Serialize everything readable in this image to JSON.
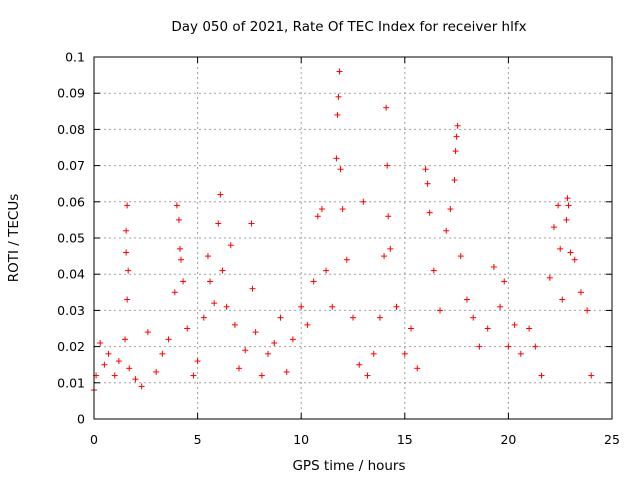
{
  "chart_data": {
    "type": "scatter",
    "title": "Day 050 of 2021, Rate Of TEC Index for receiver hlfx",
    "xlabel": "GPS time / hours",
    "ylabel": "ROTI / TECUs",
    "xlim": [
      0,
      25
    ],
    "ylim": [
      0,
      0.1
    ],
    "xticks": [
      "0",
      "5",
      "10",
      "15",
      "20",
      "25"
    ],
    "yticks": [
      "0",
      "0.01",
      "0.02",
      "0.03",
      "0.04",
      "0.05",
      "0.06",
      "0.07",
      "0.08",
      "0.09",
      "0.1"
    ],
    "grid": true,
    "marker": "+",
    "color": "#ff0000",
    "series": [
      {
        "name": "ROTI",
        "x": [
          0.0,
          0.1,
          0.3,
          0.5,
          0.7,
          1.0,
          1.2,
          1.5,
          1.55,
          1.55,
          1.6,
          1.6,
          1.65,
          1.7,
          2.0,
          2.3,
          2.6,
          3.0,
          3.3,
          3.6,
          3.9,
          4.0,
          4.1,
          4.15,
          4.2,
          4.3,
          4.5,
          4.8,
          5.0,
          5.3,
          5.5,
          5.6,
          5.8,
          6.0,
          6.1,
          6.2,
          6.4,
          6.6,
          6.8,
          7.0,
          7.3,
          7.6,
          7.65,
          7.8,
          8.1,
          8.4,
          8.7,
          9.0,
          9.3,
          9.6,
          10.0,
          10.3,
          10.6,
          10.8,
          11.0,
          11.2,
          11.5,
          11.7,
          11.75,
          11.8,
          11.85,
          11.9,
          12.0,
          12.2,
          12.5,
          12.8,
          13.0,
          13.2,
          13.5,
          13.8,
          14.0,
          14.1,
          14.15,
          14.2,
          14.3,
          14.6,
          15.0,
          15.3,
          15.6,
          16.0,
          16.1,
          16.2,
          16.4,
          16.7,
          17.0,
          17.2,
          17.4,
          17.45,
          17.5,
          17.55,
          17.7,
          18.0,
          18.3,
          18.6,
          19.0,
          19.3,
          19.6,
          19.8,
          20.0,
          20.3,
          20.6,
          21.0,
          21.3,
          21.6,
          22.0,
          22.2,
          22.4,
          22.5,
          22.6,
          22.8,
          22.85,
          22.9,
          23.0,
          23.2,
          23.5,
          23.8,
          24.0
        ],
        "y": [
          0.008,
          0.012,
          0.021,
          0.015,
          0.018,
          0.012,
          0.016,
          0.022,
          0.046,
          0.052,
          0.059,
          0.033,
          0.041,
          0.014,
          0.011,
          0.009,
          0.024,
          0.013,
          0.018,
          0.022,
          0.035,
          0.059,
          0.055,
          0.047,
          0.044,
          0.038,
          0.025,
          0.012,
          0.016,
          0.028,
          0.045,
          0.038,
          0.032,
          0.054,
          0.062,
          0.041,
          0.031,
          0.048,
          0.026,
          0.014,
          0.019,
          0.054,
          0.036,
          0.024,
          0.012,
          0.018,
          0.021,
          0.028,
          0.013,
          0.022,
          0.031,
          0.026,
          0.038,
          0.056,
          0.058,
          0.041,
          0.031,
          0.072,
          0.084,
          0.089,
          0.096,
          0.069,
          0.058,
          0.044,
          0.028,
          0.015,
          0.06,
          0.012,
          0.018,
          0.028,
          0.045,
          0.086,
          0.07,
          0.056,
          0.047,
          0.031,
          0.018,
          0.025,
          0.014,
          0.069,
          0.065,
          0.057,
          0.041,
          0.03,
          0.052,
          0.058,
          0.066,
          0.074,
          0.078,
          0.081,
          0.045,
          0.033,
          0.028,
          0.02,
          0.025,
          0.042,
          0.031,
          0.038,
          0.02,
          0.026,
          0.018,
          0.025,
          0.02,
          0.012,
          0.039,
          0.053,
          0.059,
          0.047,
          0.033,
          0.055,
          0.061,
          0.059,
          0.046,
          0.044,
          0.035,
          0.03,
          0.012
        ]
      }
    ]
  }
}
